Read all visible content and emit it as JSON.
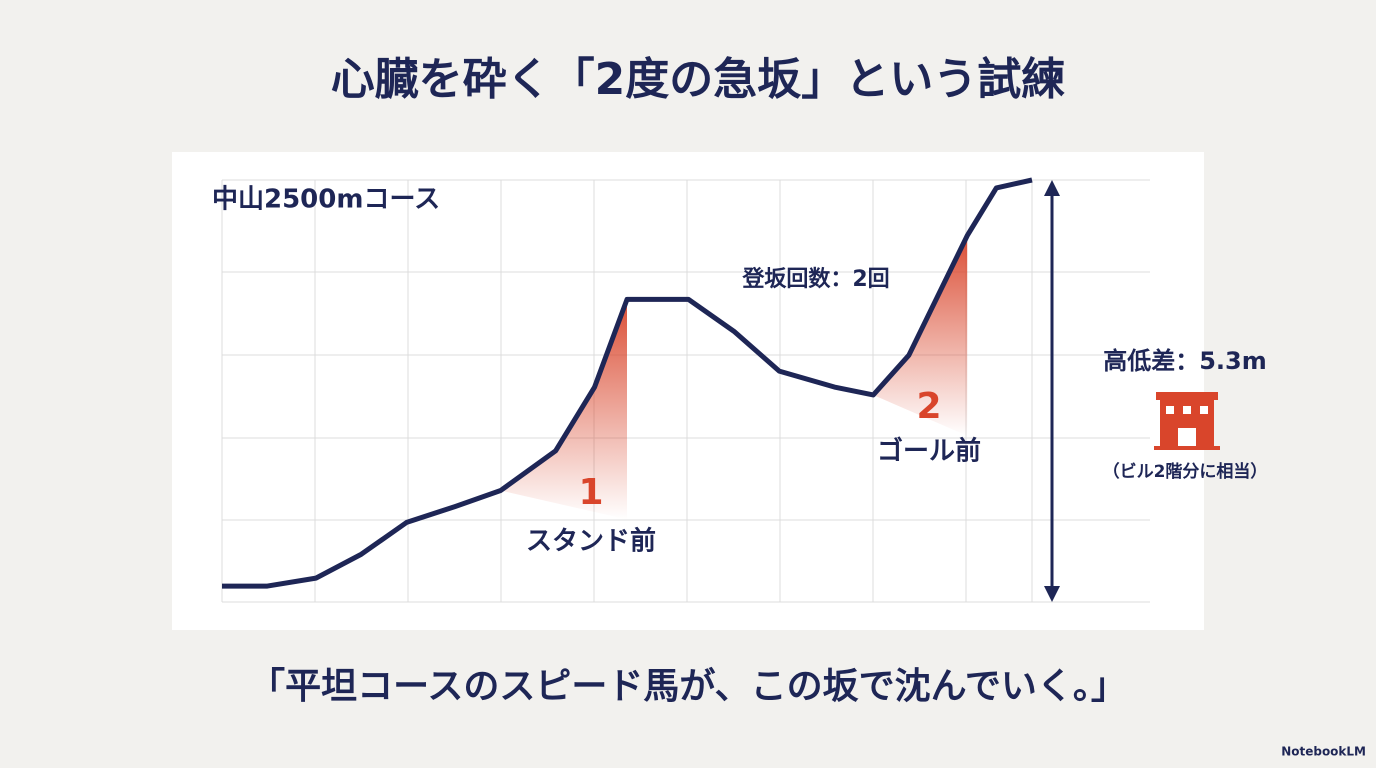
{
  "title": "心臓を砕く「2度の急坂」という試練",
  "quote": "「平坦コースのスピード馬が、この坂で沈んでいく。」",
  "footer": "NotebookLM",
  "chart_data": {
    "type": "line",
    "title": "中山2500mコース",
    "x": [
      0,
      140,
      290,
      430,
      570,
      720,
      860,
      1030,
      1150,
      1250,
      1440,
      1580,
      1720,
      1890,
      2010,
      2120,
      2300,
      2390,
      2500
    ],
    "series": [
      {
        "color": "#1e2656",
        "values": [
          0.2,
          0.2,
          0.3,
          0.6,
          1.0,
          1.2,
          1.4,
          1.9,
          2.7,
          3.8,
          3.8,
          3.4,
          2.9,
          2.7,
          2.6,
          3.1,
          4.6,
          5.2,
          5.3
        ]
      }
    ],
    "xlim": [
      0,
      2500
    ],
    "ylim": [
      0,
      5.3
    ],
    "highlight_color": "#d9452b",
    "annotations": {
      "climb_count": "登坂回数：2回",
      "slopes": [
        {
          "number": "1",
          "label": "スタンド前"
        },
        {
          "number": "2",
          "label": "ゴール前"
        }
      ],
      "height_diff": "高低差：5.3m",
      "height_note": "（ビル2階分に相当）"
    }
  }
}
